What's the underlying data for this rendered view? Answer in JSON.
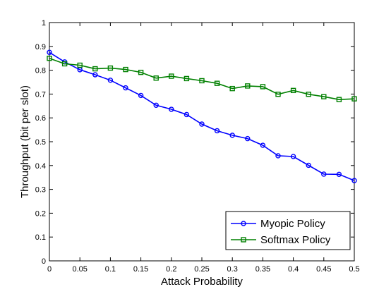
{
  "chart_data": {
    "type": "line",
    "xlabel": "Attack Probability",
    "ylabel": "Throughput (bit per slot)",
    "xlim": [
      0,
      0.5
    ],
    "ylim": [
      0,
      1
    ],
    "xticks": [
      "0",
      "0.05",
      "0.1",
      "0.15",
      "0.2",
      "0.25",
      "0.3",
      "0.35",
      "0.4",
      "0.45",
      "0.5"
    ],
    "yticks": [
      "0",
      "0.1",
      "0.2",
      "0.3",
      "0.4",
      "0.5",
      "0.6",
      "0.7",
      "0.8",
      "0.9",
      "1"
    ],
    "grid": false,
    "legend_position": "bottom-right",
    "x": [
      0,
      0.025,
      0.05,
      0.075,
      0.1,
      0.125,
      0.15,
      0.175,
      0.2,
      0.225,
      0.25,
      0.275,
      0.3,
      0.325,
      0.35,
      0.375,
      0.4,
      0.425,
      0.45,
      0.475,
      0.5
    ],
    "series": [
      {
        "name": "Myopic Policy",
        "color": "#0000ff",
        "marker": "circle",
        "values": [
          0.875,
          0.835,
          0.802,
          0.781,
          0.758,
          0.726,
          0.694,
          0.653,
          0.636,
          0.614,
          0.574,
          0.546,
          0.527,
          0.513,
          0.485,
          0.441,
          0.438,
          0.401,
          0.364,
          0.363,
          0.337
        ]
      },
      {
        "name": "Softmax Policy",
        "color": "#008000",
        "marker": "square",
        "values": [
          0.85,
          0.827,
          0.821,
          0.806,
          0.809,
          0.803,
          0.791,
          0.767,
          0.775,
          0.765,
          0.756,
          0.745,
          0.723,
          0.734,
          0.731,
          0.699,
          0.715,
          0.699,
          0.689,
          0.677,
          0.68
        ]
      }
    ]
  }
}
